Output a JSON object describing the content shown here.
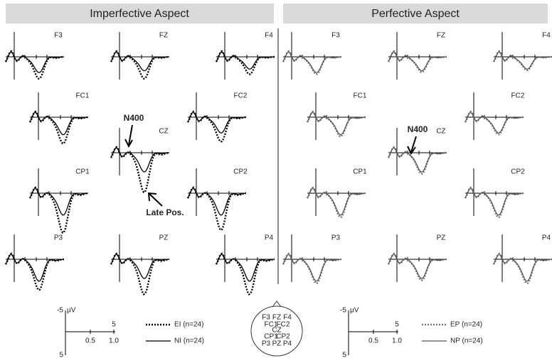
{
  "headers": [
    "Imperfective Aspect",
    "Perfective Aspect"
  ],
  "electrodes": [
    "F3",
    "FZ",
    "F4",
    "FC1",
    "FC2",
    "CZ",
    "CP1",
    "CP2",
    "P3",
    "PZ",
    "P4"
  ],
  "annotations": {
    "n400": "N400",
    "late_pos": "Late Pos."
  },
  "scale": {
    "top": "-5",
    "unit": "μV",
    "bottom": "5",
    "t1": "0.5",
    "t2": "1.0",
    "t_mark": "5"
  },
  "legends": {
    "left": [
      "EI (n=24)",
      "NI (n=24)"
    ],
    "right": [
      "EP (n=24)",
      "NP (n=24)"
    ]
  }
}
